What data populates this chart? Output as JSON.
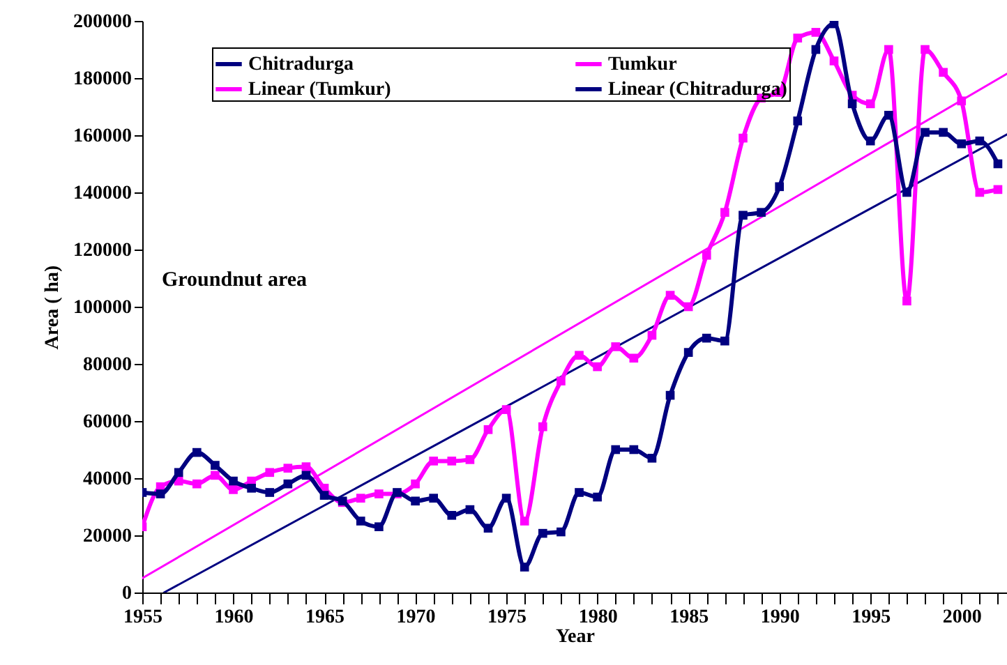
{
  "chart_data": {
    "type": "line",
    "xlabel": "Year",
    "ylabel": "Area ( ha)",
    "annotations": [
      "Groundnut area"
    ],
    "x": [
      1955,
      1956,
      1957,
      1958,
      1959,
      1960,
      1961,
      1962,
      1963,
      1964,
      1965,
      1966,
      1967,
      1968,
      1969,
      1970,
      1971,
      1972,
      1973,
      1974,
      1975,
      1976,
      1977,
      1978,
      1979,
      1980,
      1981,
      1982,
      1983,
      1984,
      1985,
      1986,
      1987,
      1988,
      1989,
      1990,
      1991,
      1992,
      1993,
      1994,
      1995,
      1996,
      1997,
      1998,
      1999,
      2000,
      2001,
      2002
    ],
    "series": [
      {
        "name": "Chitradurga",
        "color": "#000080",
        "marker": "square",
        "values": [
          35000,
          34500,
          42000,
          49000,
          44500,
          39000,
          36500,
          35000,
          38000,
          41000,
          34000,
          32000,
          25000,
          23000,
          35000,
          32000,
          33000,
          27000,
          29000,
          22500,
          33000,
          8900,
          20700,
          21200,
          35000,
          33400,
          50000,
          50000,
          47000,
          69000,
          84000,
          89000,
          88000,
          132000,
          133000,
          142000,
          165000,
          190000,
          199000,
          171000,
          158000,
          167000,
          140000,
          161000,
          161000,
          157000,
          158000,
          150000
        ]
      },
      {
        "name": "Tumkur",
        "color": "#ff00ff",
        "marker": "square",
        "values": [
          23000,
          37000,
          39000,
          38000,
          41000,
          36000,
          39000,
          42000,
          43500,
          44000,
          36500,
          31500,
          33000,
          34500,
          34500,
          38000,
          46000,
          46000,
          46500,
          57000,
          64000,
          25000,
          58000,
          74000,
          83000,
          79000,
          86000,
          82000,
          90000,
          104000,
          100000,
          118000,
          133000,
          159000,
          173000,
          175000,
          194000,
          196000,
          186000,
          174000,
          171000,
          190000,
          102000,
          190000,
          182000,
          172000,
          140000,
          141000
        ]
      },
      {
        "name": "Linear (Tumkur)",
        "type": "line",
        "color": "#ff00ff",
        "marker": "none",
        "x": [
          1955,
          2002.5
        ],
        "values": [
          5000,
          181500
        ]
      },
      {
        "name": "Linear (Chitradurga)",
        "type": "line",
        "color": "#000080",
        "marker": "none",
        "x": [
          1956.2,
          2002.5
        ],
        "values": [
          0,
          160300
        ]
      }
    ],
    "xlim": [
      1955,
      2002.5
    ],
    "xticks": [
      1955,
      {
        "value": 1956,
        "label": null
      },
      {
        "value": 1957,
        "label": null
      },
      {
        "value": 1958,
        "label": null
      },
      {
        "value": 1959,
        "label": null
      },
      1960,
      {
        "value": 1961,
        "label": null
      },
      {
        "value": 1962,
        "label": null
      },
      {
        "value": 1963,
        "label": null
      },
      {
        "value": 1964,
        "label": null
      },
      1965,
      {
        "value": 1966,
        "label": null
      },
      {
        "value": 1967,
        "label": null
      },
      {
        "value": 1968,
        "label": null
      },
      {
        "value": 1969,
        "label": null
      },
      1970,
      {
        "value": 1971,
        "label": null
      },
      {
        "value": 1972,
        "label": null
      },
      {
        "value": 1973,
        "label": null
      },
      {
        "value": 1974,
        "label": null
      },
      1975,
      {
        "value": 1976,
        "label": null
      },
      {
        "value": 1977,
        "label": null
      },
      {
        "value": 1978,
        "label": null
      },
      {
        "value": 1979,
        "label": null
      },
      1980,
      {
        "value": 1981,
        "label": null
      },
      {
        "value": 1982,
        "label": null
      },
      {
        "value": 1983,
        "label": null
      },
      {
        "value": 1984,
        "label": null
      },
      1985,
      {
        "value": 1986,
        "label": null
      },
      {
        "value": 1987,
        "label": null
      },
      {
        "value": 1988,
        "label": null
      },
      {
        "value": 1989,
        "label": null
      },
      1990,
      {
        "value": 1991,
        "label": null
      },
      {
        "value": 1992,
        "label": null
      },
      {
        "value": 1993,
        "label": null
      },
      {
        "value": 1994,
        "label": null
      },
      1995,
      {
        "value": 1996,
        "label": null
      },
      {
        "value": 1997,
        "label": null
      },
      {
        "value": 1998,
        "label": null
      },
      {
        "value": 1999,
        "label": null
      },
      2000,
      {
        "value": 2001,
        "label": null
      },
      {
        "value": 2002,
        "label": null
      }
    ],
    "ylim": [
      0,
      200000
    ],
    "yticks": [
      0,
      20000,
      40000,
      60000,
      80000,
      100000,
      120000,
      140000,
      160000,
      180000,
      200000
    ],
    "grid": false,
    "legend": "top"
  }
}
